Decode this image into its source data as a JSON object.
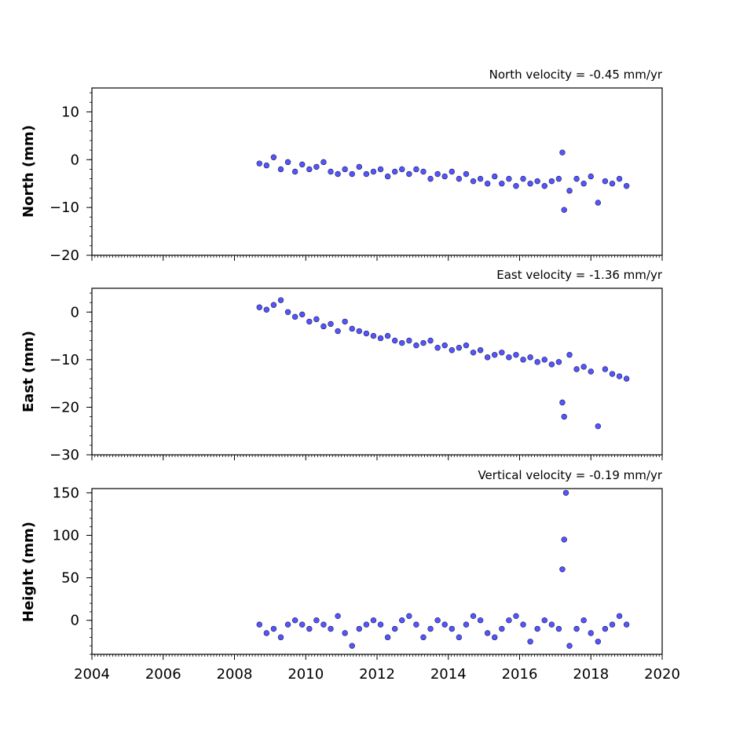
{
  "figure": {
    "marker_fill": "#5555ff",
    "marker_edge": "#1a1a4d"
  },
  "chart_data": [
    {
      "type": "scatter",
      "annotation": "North velocity = -0.45 mm/yr",
      "ylabel": "North (mm)",
      "xlim": [
        2004,
        2020
      ],
      "ylim": [
        -20,
        15
      ],
      "yticks": [
        -20,
        -10,
        0,
        10
      ],
      "xticks": [
        2004,
        2006,
        2008,
        2010,
        2012,
        2014,
        2016,
        2018,
        2020
      ],
      "show_x_tick_labels": false,
      "points": [
        [
          2008.7,
          -0.8
        ],
        [
          2008.9,
          -1.2
        ],
        [
          2009.1,
          0.5
        ],
        [
          2009.3,
          -2.0
        ],
        [
          2009.5,
          -0.5
        ],
        [
          2009.7,
          -2.5
        ],
        [
          2009.9,
          -1.0
        ],
        [
          2010.1,
          -2.0
        ],
        [
          2010.3,
          -1.5
        ],
        [
          2010.5,
          -0.5
        ],
        [
          2010.7,
          -2.5
        ],
        [
          2010.9,
          -3.0
        ],
        [
          2011.1,
          -2.0
        ],
        [
          2011.3,
          -3.0
        ],
        [
          2011.5,
          -1.5
        ],
        [
          2011.7,
          -3.0
        ],
        [
          2011.9,
          -2.5
        ],
        [
          2012.1,
          -2.0
        ],
        [
          2012.3,
          -3.5
        ],
        [
          2012.5,
          -2.5
        ],
        [
          2012.7,
          -2.0
        ],
        [
          2012.9,
          -3.0
        ],
        [
          2013.1,
          -2.0
        ],
        [
          2013.3,
          -2.5
        ],
        [
          2013.5,
          -4.0
        ],
        [
          2013.7,
          -3.0
        ],
        [
          2013.9,
          -3.5
        ],
        [
          2014.1,
          -2.5
        ],
        [
          2014.3,
          -4.0
        ],
        [
          2014.5,
          -3.0
        ],
        [
          2014.7,
          -4.5
        ],
        [
          2014.9,
          -4.0
        ],
        [
          2015.1,
          -5.0
        ],
        [
          2015.3,
          -3.5
        ],
        [
          2015.5,
          -5.0
        ],
        [
          2015.7,
          -4.0
        ],
        [
          2015.9,
          -5.5
        ],
        [
          2016.1,
          -4.0
        ],
        [
          2016.3,
          -5.0
        ],
        [
          2016.5,
          -4.5
        ],
        [
          2016.7,
          -5.5
        ],
        [
          2016.9,
          -4.5
        ],
        [
          2017.1,
          -4.0
        ],
        [
          2017.2,
          1.5
        ],
        [
          2017.25,
          -10.5
        ],
        [
          2017.4,
          -6.5
        ],
        [
          2017.6,
          -4.0
        ],
        [
          2017.8,
          -5.0
        ],
        [
          2018.0,
          -3.5
        ],
        [
          2018.2,
          -9.0
        ],
        [
          2018.4,
          -4.5
        ],
        [
          2018.6,
          -5.0
        ],
        [
          2018.8,
          -4.0
        ],
        [
          2019.0,
          -5.5
        ]
      ]
    },
    {
      "type": "scatter",
      "annotation": "East velocity = -1.36 mm/yr",
      "ylabel": "East (mm)",
      "xlim": [
        2004,
        2020
      ],
      "ylim": [
        -30,
        5
      ],
      "yticks": [
        -30,
        -20,
        -10,
        0
      ],
      "xticks": [
        2004,
        2006,
        2008,
        2010,
        2012,
        2014,
        2016,
        2018,
        2020
      ],
      "show_x_tick_labels": false,
      "points": [
        [
          2008.7,
          1.0
        ],
        [
          2008.9,
          0.5
        ],
        [
          2009.1,
          1.5
        ],
        [
          2009.3,
          2.5
        ],
        [
          2009.5,
          0.0
        ],
        [
          2009.7,
          -1.0
        ],
        [
          2009.9,
          -0.5
        ],
        [
          2010.1,
          -2.0
        ],
        [
          2010.3,
          -1.5
        ],
        [
          2010.5,
          -3.0
        ],
        [
          2010.7,
          -2.5
        ],
        [
          2010.9,
          -4.0
        ],
        [
          2011.1,
          -2.0
        ],
        [
          2011.3,
          -3.5
        ],
        [
          2011.5,
          -4.0
        ],
        [
          2011.7,
          -4.5
        ],
        [
          2011.9,
          -5.0
        ],
        [
          2012.1,
          -5.5
        ],
        [
          2012.3,
          -5.0
        ],
        [
          2012.5,
          -6.0
        ],
        [
          2012.7,
          -6.5
        ],
        [
          2012.9,
          -6.0
        ],
        [
          2013.1,
          -7.0
        ],
        [
          2013.3,
          -6.5
        ],
        [
          2013.5,
          -6.0
        ],
        [
          2013.7,
          -7.5
        ],
        [
          2013.9,
          -7.0
        ],
        [
          2014.1,
          -8.0
        ],
        [
          2014.3,
          -7.5
        ],
        [
          2014.5,
          -7.0
        ],
        [
          2014.7,
          -8.5
        ],
        [
          2014.9,
          -8.0
        ],
        [
          2015.1,
          -9.5
        ],
        [
          2015.3,
          -9.0
        ],
        [
          2015.5,
          -8.5
        ],
        [
          2015.7,
          -9.5
        ],
        [
          2015.9,
          -9.0
        ],
        [
          2016.1,
          -10.0
        ],
        [
          2016.3,
          -9.5
        ],
        [
          2016.5,
          -10.5
        ],
        [
          2016.7,
          -10.0
        ],
        [
          2016.9,
          -11.0
        ],
        [
          2017.1,
          -10.5
        ],
        [
          2017.2,
          -19.0
        ],
        [
          2017.25,
          -22.0
        ],
        [
          2017.4,
          -9.0
        ],
        [
          2017.6,
          -12.0
        ],
        [
          2017.8,
          -11.5
        ],
        [
          2018.0,
          -12.5
        ],
        [
          2018.2,
          -24.0
        ],
        [
          2018.4,
          -12.0
        ],
        [
          2018.6,
          -13.0
        ],
        [
          2018.8,
          -13.5
        ],
        [
          2019.0,
          -14.0
        ]
      ]
    },
    {
      "type": "scatter",
      "annotation": "Vertical velocity = -0.19 mm/yr",
      "ylabel": "Height (mm)",
      "xlim": [
        2004,
        2020
      ],
      "ylim": [
        -40,
        155
      ],
      "yticks": [
        0,
        50,
        100,
        150
      ],
      "xticks": [
        2004,
        2006,
        2008,
        2010,
        2012,
        2014,
        2016,
        2018,
        2020
      ],
      "show_x_tick_labels": true,
      "points": [
        [
          2008.7,
          -5.0
        ],
        [
          2008.9,
          -15.0
        ],
        [
          2009.1,
          -10.0
        ],
        [
          2009.3,
          -20.0
        ],
        [
          2009.5,
          -5.0
        ],
        [
          2009.7,
          0.0
        ],
        [
          2009.9,
          -5.0
        ],
        [
          2010.1,
          -10.0
        ],
        [
          2010.3,
          0.0
        ],
        [
          2010.5,
          -5.0
        ],
        [
          2010.7,
          -10.0
        ],
        [
          2010.9,
          5.0
        ],
        [
          2011.1,
          -15.0
        ],
        [
          2011.3,
          -30.0
        ],
        [
          2011.5,
          -10.0
        ],
        [
          2011.7,
          -5.0
        ],
        [
          2011.9,
          0.0
        ],
        [
          2012.1,
          -5.0
        ],
        [
          2012.3,
          -20.0
        ],
        [
          2012.5,
          -10.0
        ],
        [
          2012.7,
          0.0
        ],
        [
          2012.9,
          5.0
        ],
        [
          2013.1,
          -5.0
        ],
        [
          2013.3,
          -20.0
        ],
        [
          2013.5,
          -10.0
        ],
        [
          2013.7,
          0.0
        ],
        [
          2013.9,
          -5.0
        ],
        [
          2014.1,
          -10.0
        ],
        [
          2014.3,
          -20.0
        ],
        [
          2014.5,
          -5.0
        ],
        [
          2014.7,
          5.0
        ],
        [
          2014.9,
          0.0
        ],
        [
          2015.1,
          -15.0
        ],
        [
          2015.3,
          -20.0
        ],
        [
          2015.5,
          -10.0
        ],
        [
          2015.7,
          0.0
        ],
        [
          2015.9,
          5.0
        ],
        [
          2016.1,
          -5.0
        ],
        [
          2016.3,
          -25.0
        ],
        [
          2016.5,
          -10.0
        ],
        [
          2016.7,
          0.0
        ],
        [
          2016.9,
          -5.0
        ],
        [
          2017.1,
          -10.0
        ],
        [
          2017.2,
          60.0
        ],
        [
          2017.25,
          95.0
        ],
        [
          2017.3,
          150.0
        ],
        [
          2017.4,
          -30.0
        ],
        [
          2017.6,
          -10.0
        ],
        [
          2017.8,
          0.0
        ],
        [
          2018.0,
          -15.0
        ],
        [
          2018.2,
          -25.0
        ],
        [
          2018.4,
          -10.0
        ],
        [
          2018.6,
          -5.0
        ],
        [
          2018.8,
          5.0
        ],
        [
          2019.0,
          -5.0
        ]
      ]
    }
  ]
}
